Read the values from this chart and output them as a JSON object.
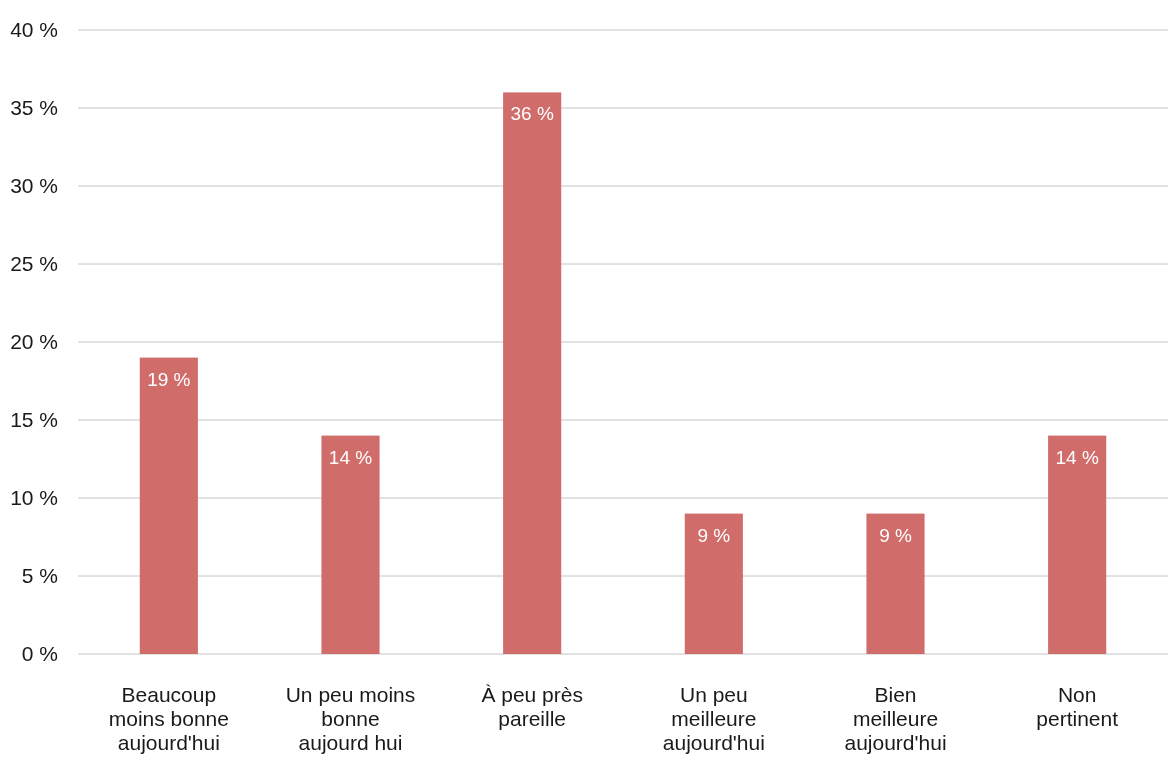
{
  "chart_data": {
    "type": "bar",
    "categories": [
      "Beaucoup moins bonne aujourd'hui",
      "Un peu moins bonne aujourd hui",
      "À peu près pareille",
      "Un peu meilleure aujourd'hui",
      "Bien meilleure aujourd'hui",
      "Non pertinent"
    ],
    "values": [
      19,
      14,
      36,
      9,
      9,
      14
    ],
    "value_labels": [
      "19 %",
      "14 %",
      "36 %",
      "9 %",
      "9 %",
      "14 %"
    ],
    "color": "#d06c6a",
    "ylim": [
      0,
      40
    ],
    "yticks": [
      {
        "value": 0,
        "label": "0 %"
      },
      {
        "value": 5,
        "label": "5 %"
      },
      {
        "value": 10,
        "label": "10 %"
      },
      {
        "value": 15,
        "label": "15 %"
      },
      {
        "value": 20,
        "label": "20 %"
      },
      {
        "value": 25,
        "label": "25 %"
      },
      {
        "value": 30,
        "label": "30 %"
      },
      {
        "value": 35,
        "label": "35 %"
      },
      {
        "value": 40,
        "label": "40 %"
      }
    ],
    "grid": "y"
  }
}
